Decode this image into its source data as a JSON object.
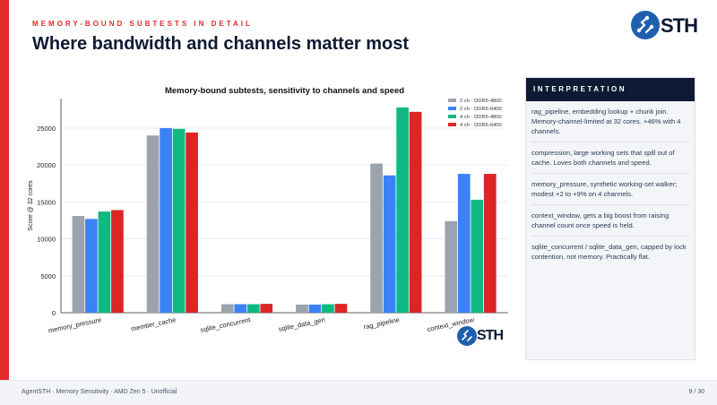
{
  "header": {
    "eyebrow": "MEMORY-BOUND SUBTESTS IN DETAIL",
    "title": "Where bandwidth and channels matter most",
    "logo_text": "STH"
  },
  "chart_data": {
    "type": "bar",
    "title": "Memory-bound subtests, sensitivity to channels and speed",
    "xlabel": "",
    "ylabel": "Score @ 32 cores",
    "ylim": [
      0,
      29000
    ],
    "yticks": [
      0,
      5000,
      10000,
      15000,
      20000,
      25000
    ],
    "grid": true,
    "legend_position": "top-right",
    "categories": [
      "memory_pressure",
      "memtier_cache",
      "sqlite_concurrent",
      "sqlite_data_gen",
      "rag_pipeline",
      "context_window"
    ],
    "series": [
      {
        "name": "2 ch · DDR5-4800",
        "color": "#9ca3af",
        "values": [
          13100,
          24000,
          1150,
          1100,
          20200,
          12400
        ]
      },
      {
        "name": "2 ch · DDR5-6400",
        "color": "#3b82f6",
        "values": [
          12700,
          25000,
          1150,
          1100,
          18600,
          18800
        ]
      },
      {
        "name": "4 ch · DDR5-4800",
        "color": "#10b981",
        "values": [
          13700,
          24900,
          1150,
          1150,
          27800,
          15300
        ]
      },
      {
        "name": "4 ch · DDR5-6400",
        "color": "#dc2626",
        "values": [
          13900,
          24400,
          1200,
          1200,
          27200,
          18800
        ]
      }
    ]
  },
  "watermark_text": "STH",
  "panel": {
    "heading": "INTERPRETATION",
    "notes": [
      "rag_pipeline, embedding lookup + chunk join. Memory-channel-limited at 32 cores. +46% with 4 channels.",
      "compression, large working sets that spill out of cache. Loves both channels and speed.",
      "memory_pressure, synthetic working-set walker; modest +2 to +9% on 4 channels.",
      "context_window, gets a big boost from raising channel count once speed is held.",
      "sqlite_concurrent / sqlite_data_gen, capped by lock contention, not memory. Practically flat."
    ]
  },
  "footer": {
    "left": "AgentSTH · Memory Sensitivity · AMD Zen 5 · Unofficial",
    "right": "9 / 30"
  }
}
